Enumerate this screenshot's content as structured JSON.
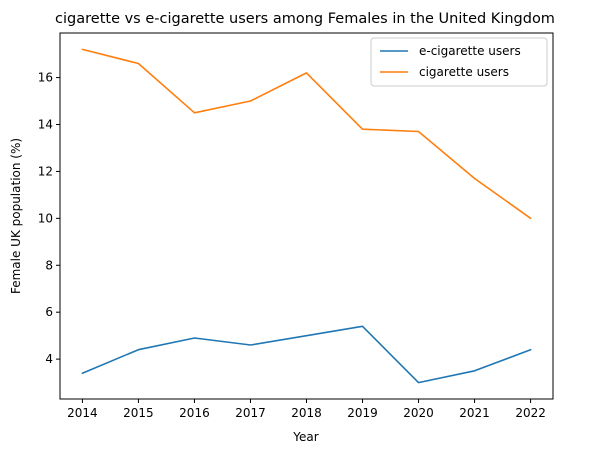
{
  "chart_data": {
    "type": "line",
    "title": "cigarette vs e-cigarette users among Females in the United Kingdom",
    "xlabel": "Year",
    "ylabel": "Female UK population (%)",
    "x": [
      2014,
      2015,
      2016,
      2017,
      2018,
      2019,
      2020,
      2021,
      2022
    ],
    "xticks": [
      "2014",
      "2015",
      "2016",
      "2017",
      "2018",
      "2019",
      "2020",
      "2021",
      "2022"
    ],
    "yticks": [
      4,
      6,
      8,
      10,
      12,
      14,
      16
    ],
    "ylim": [
      2.3,
      17.9
    ],
    "grid": false,
    "legend_position": "top-right",
    "series": [
      {
        "name": "e-cigarette users",
        "color": "#1f77b4",
        "values": [
          3.4,
          4.4,
          4.9,
          4.6,
          5.0,
          5.4,
          3.0,
          3.5,
          4.4
        ]
      },
      {
        "name": "cigarette users",
        "color": "#ff7f0e",
        "values": [
          17.2,
          16.6,
          14.5,
          15.0,
          16.2,
          13.8,
          13.7,
          11.7,
          10.0
        ]
      }
    ]
  }
}
